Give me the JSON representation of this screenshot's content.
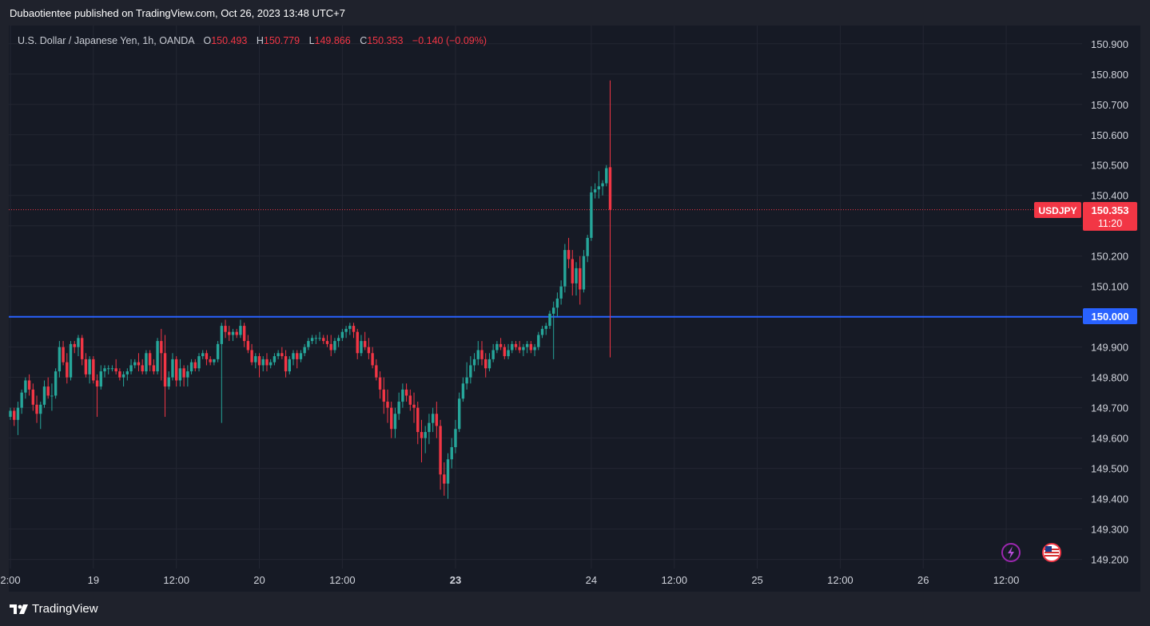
{
  "header": {
    "published_text": "Dubaotientee published on TradingView.com, Oct 26, 2023 13:48 UTC+7"
  },
  "legend": {
    "instrument": "U.S. Dollar / Japanese Yen, 1h, OANDA",
    "open_label": "O",
    "open": "150.493",
    "high_label": "H",
    "high": "150.779",
    "low_label": "L",
    "low": "149.866",
    "close_label": "C",
    "close": "150.353",
    "change": "−0.140 (−0.09%)"
  },
  "price_label": {
    "symbol": "USDJPY",
    "price": "150.353",
    "countdown": "11:20"
  },
  "level_label": {
    "price": "150.000"
  },
  "footer": {
    "brand": "TradingView"
  },
  "colors": {
    "up": "#26a69a",
    "down": "#f23645",
    "level_line": "#2962ff",
    "background": "#161a25",
    "grid": "#232632"
  },
  "icons": [
    "lightning-icon",
    "us-flag-icon",
    "tradingview-logo-icon"
  ],
  "chart_data": {
    "type": "candlestick",
    "title": "U.S. Dollar / Japanese Yen, 1h, OANDA",
    "ylim": [
      149.17,
      150.96
    ],
    "y_ticks": [
      "150.900",
      "150.800",
      "150.700",
      "150.600",
      "150.500",
      "150.400",
      "150.300",
      "150.200",
      "150.100",
      "150.000",
      "149.900",
      "149.800",
      "149.700",
      "149.600",
      "149.500",
      "149.400",
      "149.300",
      "149.200"
    ],
    "x_ticks": [
      {
        "label": "2:00",
        "bar": 0,
        "bold": false
      },
      {
        "label": "19",
        "bar": 22,
        "bold": false
      },
      {
        "label": "12:00",
        "bar": 44,
        "bold": false
      },
      {
        "label": "20",
        "bar": 66,
        "bold": false
      },
      {
        "label": "12:00",
        "bar": 88,
        "bold": false
      },
      {
        "label": "23",
        "bar": 118,
        "bold": true
      },
      {
        "label": "24",
        "bar": 154,
        "bold": false
      },
      {
        "label": "12:00",
        "bar": 176,
        "bold": false
      },
      {
        "label": "25",
        "bar": 198,
        "bold": false
      },
      {
        "label": "12:00",
        "bar": 220,
        "bold": false
      },
      {
        "label": "26",
        "bar": 242,
        "bold": false
      },
      {
        "label": "12:00",
        "bar": 264,
        "bold": false
      }
    ],
    "horizontal_level": 150.0,
    "last_price": 150.353,
    "candles": [
      [
        149.67,
        149.7,
        149.66,
        149.69
      ],
      [
        149.69,
        149.7,
        149.64,
        149.66
      ],
      [
        149.66,
        149.72,
        149.61,
        149.7
      ],
      [
        149.7,
        149.76,
        149.68,
        149.75
      ],
      [
        149.75,
        149.8,
        149.73,
        149.79
      ],
      [
        149.79,
        149.81,
        149.74,
        149.76
      ],
      [
        149.76,
        149.78,
        149.69,
        149.71
      ],
      [
        149.71,
        149.74,
        149.65,
        149.68
      ],
      [
        149.68,
        149.72,
        149.63,
        149.71
      ],
      [
        149.71,
        149.79,
        149.7,
        149.77
      ],
      [
        149.77,
        149.8,
        149.73,
        149.74
      ],
      [
        149.74,
        149.78,
        149.69,
        149.74
      ],
      [
        149.74,
        149.83,
        149.73,
        149.82
      ],
      [
        149.82,
        149.92,
        149.8,
        149.9
      ],
      [
        149.9,
        149.92,
        149.84,
        149.85
      ],
      [
        149.85,
        149.88,
        149.78,
        149.8
      ],
      [
        149.8,
        149.92,
        149.79,
        149.91
      ],
      [
        149.91,
        149.92,
        149.88,
        149.9
      ],
      [
        149.9,
        149.94,
        149.87,
        149.93
      ],
      [
        149.93,
        149.94,
        149.84,
        149.86
      ],
      [
        149.86,
        149.88,
        149.8,
        149.81
      ],
      [
        149.81,
        149.87,
        149.78,
        149.86
      ],
      [
        149.86,
        149.87,
        149.78,
        149.79
      ],
      [
        149.79,
        149.81,
        149.67,
        149.77
      ],
      [
        149.77,
        149.84,
        149.76,
        149.82
      ],
      [
        149.82,
        149.84,
        149.8,
        149.83
      ],
      [
        149.83,
        149.84,
        149.81,
        149.83
      ],
      [
        149.83,
        149.84,
        149.82,
        149.83
      ],
      [
        149.83,
        149.86,
        149.81,
        149.82
      ],
      [
        149.82,
        149.83,
        149.79,
        149.8
      ],
      [
        149.8,
        149.82,
        149.77,
        149.81
      ],
      [
        149.81,
        149.83,
        149.79,
        149.82
      ],
      [
        149.82,
        149.86,
        149.81,
        149.84
      ],
      [
        149.84,
        149.86,
        149.83,
        149.85
      ],
      [
        149.85,
        149.88,
        149.82,
        149.84
      ],
      [
        149.84,
        149.86,
        149.81,
        149.82
      ],
      [
        149.82,
        149.89,
        149.81,
        149.88
      ],
      [
        149.88,
        149.89,
        149.82,
        149.84
      ],
      [
        149.84,
        149.86,
        149.81,
        149.82
      ],
      [
        149.82,
        149.93,
        149.81,
        149.92
      ],
      [
        149.92,
        149.96,
        149.79,
        149.88
      ],
      [
        149.88,
        149.94,
        149.67,
        149.77
      ],
      [
        149.77,
        149.82,
        149.76,
        149.8
      ],
      [
        149.8,
        149.88,
        149.79,
        149.86
      ],
      [
        149.86,
        149.87,
        149.77,
        149.79
      ],
      [
        149.79,
        149.86,
        149.77,
        149.83
      ],
      [
        149.83,
        149.84,
        149.77,
        149.8
      ],
      [
        149.8,
        149.84,
        149.77,
        149.82
      ],
      [
        149.82,
        149.86,
        149.81,
        149.85
      ],
      [
        149.85,
        149.86,
        149.82,
        149.83
      ],
      [
        149.83,
        149.88,
        149.82,
        149.87
      ],
      [
        149.87,
        149.89,
        149.86,
        149.88
      ],
      [
        149.88,
        149.89,
        149.84,
        149.86
      ],
      [
        149.86,
        149.87,
        149.84,
        149.85
      ],
      [
        149.85,
        149.86,
        149.84,
        149.86
      ],
      [
        149.86,
        149.92,
        149.85,
        149.91
      ],
      [
        149.91,
        149.98,
        149.65,
        149.97
      ],
      [
        149.97,
        149.99,
        149.93,
        149.95
      ],
      [
        149.95,
        149.97,
        149.92,
        149.94
      ],
      [
        149.94,
        149.96,
        149.92,
        149.95
      ],
      [
        149.95,
        149.96,
        149.93,
        149.94
      ],
      [
        149.94,
        149.99,
        149.93,
        149.97
      ],
      [
        149.97,
        149.98,
        149.9,
        149.92
      ],
      [
        149.92,
        149.94,
        149.88,
        149.89
      ],
      [
        149.89,
        149.91,
        149.84,
        149.85
      ],
      [
        149.85,
        149.88,
        149.83,
        149.87
      ],
      [
        149.87,
        149.88,
        149.8,
        149.84
      ],
      [
        149.84,
        149.87,
        149.82,
        149.86
      ],
      [
        149.86,
        149.88,
        149.82,
        149.84
      ],
      [
        149.84,
        149.86,
        149.83,
        149.85
      ],
      [
        149.85,
        149.88,
        149.84,
        149.87
      ],
      [
        149.87,
        149.89,
        149.86,
        149.88
      ],
      [
        149.88,
        149.9,
        149.86,
        149.87
      ],
      [
        149.87,
        149.89,
        149.8,
        149.82
      ],
      [
        149.82,
        149.87,
        149.81,
        149.86
      ],
      [
        149.86,
        149.89,
        149.84,
        149.88
      ],
      [
        149.88,
        149.89,
        149.83,
        149.86
      ],
      [
        149.86,
        149.89,
        149.85,
        149.88
      ],
      [
        149.88,
        149.91,
        149.87,
        149.9
      ],
      [
        149.9,
        149.93,
        149.89,
        149.92
      ],
      [
        149.92,
        149.94,
        149.91,
        149.93
      ],
      [
        149.93,
        149.94,
        149.91,
        149.93
      ],
      [
        149.93,
        149.95,
        149.92,
        149.93
      ],
      [
        149.93,
        149.94,
        149.91,
        149.92
      ],
      [
        149.92,
        149.94,
        149.9,
        149.91
      ],
      [
        149.91,
        149.94,
        149.87,
        149.89
      ],
      [
        149.89,
        149.93,
        149.88,
        149.92
      ],
      [
        149.92,
        149.94,
        149.9,
        149.93
      ],
      [
        149.93,
        149.96,
        149.92,
        149.95
      ],
      [
        149.95,
        149.97,
        149.93,
        149.96
      ],
      [
        149.96,
        149.98,
        149.94,
        149.97
      ],
      [
        149.97,
        149.98,
        149.93,
        149.95
      ],
      [
        149.95,
        149.96,
        149.86,
        149.88
      ],
      [
        149.88,
        149.94,
        149.87,
        149.92
      ],
      [
        149.92,
        149.95,
        149.89,
        149.9
      ],
      [
        149.9,
        149.93,
        149.86,
        149.88
      ],
      [
        149.88,
        149.9,
        149.83,
        149.84
      ],
      [
        149.84,
        149.86,
        149.79,
        149.8
      ],
      [
        149.8,
        149.82,
        149.73,
        149.76
      ],
      [
        149.76,
        149.8,
        149.68,
        149.72
      ],
      [
        149.72,
        149.76,
        149.65,
        149.7
      ],
      [
        149.7,
        149.72,
        149.6,
        149.63
      ],
      [
        149.63,
        149.7,
        149.6,
        149.68
      ],
      [
        149.68,
        149.75,
        149.66,
        149.72
      ],
      [
        149.72,
        149.78,
        149.7,
        149.76
      ],
      [
        149.76,
        149.78,
        149.72,
        149.74
      ],
      [
        149.74,
        149.76,
        149.69,
        149.71
      ],
      [
        149.71,
        149.75,
        149.65,
        149.7
      ],
      [
        149.7,
        149.72,
        149.58,
        149.62
      ],
      [
        149.62,
        149.66,
        149.52,
        149.6
      ],
      [
        149.6,
        149.64,
        149.55,
        149.62
      ],
      [
        149.62,
        149.68,
        149.58,
        149.65
      ],
      [
        149.65,
        149.7,
        149.62,
        149.68
      ],
      [
        149.68,
        149.72,
        149.6,
        149.64
      ],
      [
        149.64,
        149.66,
        149.43,
        149.48
      ],
      [
        149.48,
        149.52,
        149.41,
        149.45
      ],
      [
        149.45,
        149.55,
        149.4,
        149.53
      ],
      [
        149.53,
        149.6,
        149.5,
        149.57
      ],
      [
        149.57,
        149.66,
        149.55,
        149.63
      ],
      [
        149.63,
        149.75,
        149.62,
        149.73
      ],
      [
        149.73,
        149.8,
        149.72,
        149.78
      ],
      [
        149.78,
        149.85,
        149.76,
        149.8
      ],
      [
        149.8,
        149.87,
        149.78,
        149.84
      ],
      [
        149.84,
        149.88,
        149.82,
        149.86
      ],
      [
        149.86,
        149.92,
        149.84,
        149.89
      ],
      [
        149.89,
        149.92,
        149.84,
        149.86
      ],
      [
        149.86,
        149.88,
        149.8,
        149.83
      ],
      [
        149.83,
        149.88,
        149.82,
        149.86
      ],
      [
        149.86,
        149.91,
        149.85,
        149.89
      ],
      [
        149.89,
        149.92,
        149.88,
        149.91
      ],
      [
        149.91,
        149.93,
        149.89,
        149.9
      ],
      [
        149.9,
        149.91,
        149.86,
        149.87
      ],
      [
        149.87,
        149.91,
        149.86,
        149.89
      ],
      [
        149.89,
        149.92,
        149.88,
        149.91
      ],
      [
        149.91,
        149.92,
        149.89,
        149.9
      ],
      [
        149.9,
        149.92,
        149.88,
        149.89
      ],
      [
        149.89,
        149.91,
        149.87,
        149.9
      ],
      [
        149.9,
        149.92,
        149.88,
        149.91
      ],
      [
        149.91,
        149.92,
        149.88,
        149.89
      ],
      [
        149.89,
        149.91,
        149.87,
        149.9
      ],
      [
        149.9,
        149.95,
        149.89,
        149.94
      ],
      [
        149.94,
        149.97,
        149.93,
        149.96
      ],
      [
        149.96,
        149.98,
        149.94,
        149.97
      ],
      [
        149.97,
        150.02,
        149.96,
        150.01
      ],
      [
        150.01,
        150.05,
        149.86,
        150.03
      ],
      [
        150.03,
        150.08,
        150.0,
        150.06
      ],
      [
        150.06,
        150.12,
        150.04,
        150.1
      ],
      [
        150.1,
        150.24,
        150.08,
        150.22
      ],
      [
        150.22,
        150.26,
        150.16,
        150.19
      ],
      [
        150.19,
        150.22,
        150.07,
        150.11
      ],
      [
        150.11,
        150.18,
        150.07,
        150.16
      ],
      [
        150.16,
        150.2,
        150.04,
        150.09
      ],
      [
        150.09,
        150.22,
        150.08,
        150.2
      ],
      [
        150.2,
        150.27,
        150.18,
        150.26
      ],
      [
        150.26,
        150.43,
        150.25,
        150.41
      ],
      [
        150.41,
        150.44,
        150.39,
        150.42
      ],
      [
        150.42,
        150.48,
        150.39,
        150.43
      ],
      [
        150.43,
        150.45,
        150.4,
        150.44
      ],
      [
        150.44,
        150.5,
        150.43,
        150.49
      ],
      [
        150.493,
        150.779,
        149.866,
        150.353
      ]
    ]
  }
}
